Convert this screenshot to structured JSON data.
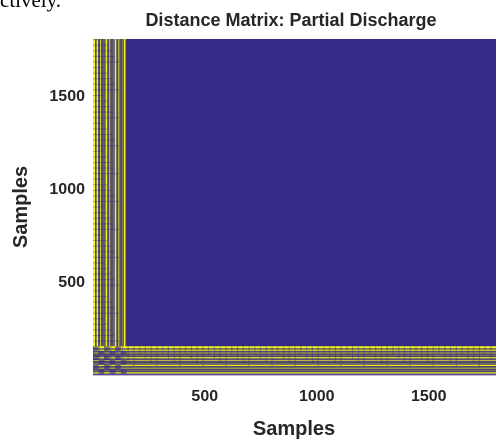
{
  "fragment_text": "ctively.",
  "chart_data": {
    "type": "heatmap",
    "title": "Distance Matrix: Partial Discharge",
    "xlabel": "Samples",
    "ylabel": "Samples",
    "xlim": [
      1,
      1800
    ],
    "ylim": [
      1,
      1800
    ],
    "x_ticks": [
      "500",
      "1000",
      "1500"
    ],
    "y_ticks": [
      "500",
      "1000",
      "1500"
    ],
    "x_tick_values": [
      500,
      1000,
      1500
    ],
    "y_tick_values": [
      500,
      1000,
      1500
    ],
    "colormap": {
      "low": "#352a87",
      "high": "#f9fb0e"
    },
    "background_value": "low",
    "pattern": {
      "high_band_x_range": [
        1,
        150
      ],
      "high_band_y_range": [
        1,
        150
      ],
      "description": "striped high-valued bands along left column and bottom row"
    }
  }
}
